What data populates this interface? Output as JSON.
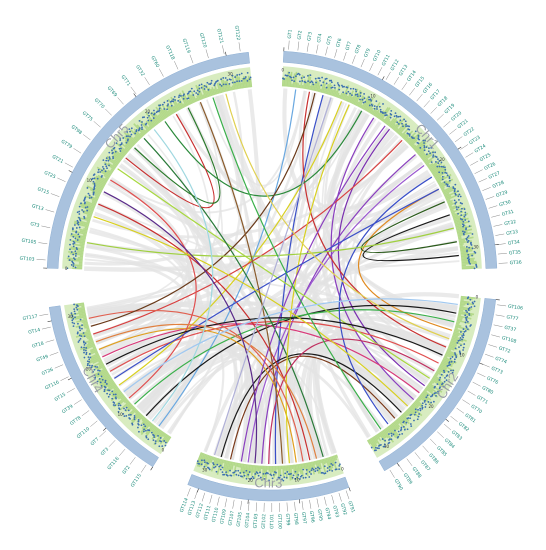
{
  "colors": {
    "ideogram": "#a9c2de",
    "ideogram_stroke": "#8fb0d4",
    "track_light": "#d8ecc0",
    "track_dark": "#b3d98a",
    "track_points": "#3a6fb0",
    "gene_label": "#1a8a7a",
    "gene_tick": "#555555",
    "background_link": "#e3e3e3",
    "chr_label": "#9a9ea6"
  },
  "chromosomes": [
    {
      "id": "chr1",
      "label": "Chr1",
      "genes": [
        "GT1",
        "GT2",
        "GT3",
        "GT4",
        "GT5",
        "GT6",
        "GT7",
        "GT8",
        "GT9",
        "GT10",
        "GT11",
        "GT12",
        "GT13",
        "GT14",
        "GT15",
        "GT16",
        "GT17",
        "GT18",
        "GT19",
        "GT20",
        "GT21",
        "GT22",
        "GT23",
        "GT24",
        "GT25",
        "GT26",
        "GT27",
        "GT28",
        "GT29",
        "GT30",
        "GT31",
        "GT32",
        "GT33",
        "GT34",
        "GT35",
        "GT36"
      ]
    },
    {
      "id": "chr2",
      "label": "Chr2",
      "genes": [
        "GT106",
        "GT77",
        "GT37",
        "GT108",
        "GT72",
        "GT74",
        "GT73",
        "GT76",
        "GT80",
        "GT71",
        "GT70",
        "GT81",
        "GT82",
        "GT83",
        "GT84",
        "GT85",
        "GT86",
        "GT87",
        "GT88",
        "GT89",
        "GT90"
      ]
    },
    {
      "id": "chr3",
      "label": "Chr3",
      "genes": [
        "GT91",
        "GT92",
        "GT93",
        "GT94",
        "GT95",
        "GT96",
        "GT97",
        "GT98",
        "GT99",
        "GT100",
        "GT101",
        "GT102",
        "GT103",
        "GT104",
        "GT105",
        "GT107",
        "GT109",
        "GT110",
        "GT111",
        "GT112",
        "GT113",
        "GT114"
      ]
    },
    {
      "id": "chr4",
      "label": "Chr4",
      "genes": [
        "GT115",
        "GT2",
        "GT116",
        "GT3",
        "GT7",
        "GT110",
        "GT78",
        "GT39",
        "GT15",
        "GT116",
        "GT26",
        "GT49",
        "GT18",
        "GT14",
        "GT117"
      ]
    },
    {
      "id": "chr5",
      "label": "Chr5",
      "genes": [
        "GT103",
        "GT105",
        "GT3",
        "GT13",
        "GT15",
        "GT25",
        "GT21",
        "GT79",
        "GT98",
        "GT75",
        "GT70",
        "GT69",
        "GT71",
        "GT32",
        "GT60",
        "GT118",
        "GT119",
        "GT120",
        "GT121",
        "GT122"
      ]
    }
  ],
  "ticks": [
    "0",
    "10",
    "20",
    "30"
  ],
  "links": [
    {
      "from": [
        "chr1",
        0.55
      ],
      "to": [
        "chr3",
        0.55
      ],
      "color": "#8a3fbf"
    },
    {
      "from": [
        "chr1",
        0.6
      ],
      "to": [
        "chr3",
        0.65
      ],
      "color": "#9b59d0"
    },
    {
      "from": [
        "chr1",
        0.35
      ],
      "to": [
        "chr2",
        0.65
      ],
      "color": "#8a3fbf"
    },
    {
      "from": [
        "chr1",
        0.42
      ],
      "to": [
        "chr2",
        0.55
      ],
      "color": "#7a2fb0"
    },
    {
      "from": [
        "chr1",
        0.15
      ],
      "to": [
        "chr3",
        0.45
      ],
      "color": "#3a4fc8"
    },
    {
      "from": [
        "chr1",
        0.22
      ],
      "to": [
        "chr4",
        0.45
      ],
      "color": "#d8d020"
    },
    {
      "from": [
        "chr1",
        0.1
      ],
      "to": [
        "chr2",
        0.3
      ],
      "color": "#c83030"
    },
    {
      "from": [
        "chr1",
        0.3
      ],
      "to": [
        "chr5",
        0.65
      ],
      "color": "#2a8a3a"
    },
    {
      "from": [
        "chr1",
        0.7
      ],
      "to": [
        "chr2",
        0.2
      ],
      "color": "#e08a20"
    },
    {
      "from": [
        "chr1",
        0.75
      ],
      "to": [
        "chr1",
        0.9
      ],
      "color": "#2a5a1a"
    },
    {
      "from": [
        "chr1",
        0.8
      ],
      "to": [
        "chr1",
        0.95
      ],
      "color": "#1a1a1a"
    },
    {
      "from": [
        "chr1",
        0.05
      ],
      "to": [
        "chr4",
        0.1
      ],
      "color": "#6aa8e0"
    },
    {
      "from": [
        "chr1",
        0.48
      ],
      "to": [
        "chr4",
        0.8
      ],
      "color": "#d84040"
    },
    {
      "from": [
        "chr2",
        0.1
      ],
      "to": [
        "chr4",
        0.2
      ],
      "color": "#1a1a1a"
    },
    {
      "from": [
        "chr2",
        0.15
      ],
      "to": [
        "chr4",
        0.3
      ],
      "color": "#3ab04a"
    },
    {
      "from": [
        "chr2",
        0.4
      ],
      "to": [
        "chr4",
        0.55
      ],
      "color": "#e05050"
    },
    {
      "from": [
        "chr2",
        0.5
      ],
      "to": [
        "chr5",
        0.4
      ],
      "color": "#a8d840"
    },
    {
      "from": [
        "chr2",
        0.75
      ],
      "to": [
        "chr3",
        0.85
      ],
      "color": "#1a1a1a"
    },
    {
      "from": [
        "chr2",
        0.8
      ],
      "to": [
        "chr3",
        0.78
      ],
      "color": "#7a3a1a"
    },
    {
      "from": [
        "chr2",
        0.6
      ],
      "to": [
        "chr4",
        0.65
      ],
      "color": "#d83a7a"
    },
    {
      "from": [
        "chr2",
        0.85
      ],
      "to": [
        "chr1",
        0.65
      ],
      "color": "#3a4fc8"
    },
    {
      "from": [
        "chr3",
        0.1
      ],
      "to": [
        "chr5",
        0.55
      ],
      "color": "#2a7a3a"
    },
    {
      "from": [
        "chr3",
        0.2
      ],
      "to": [
        "chr5",
        0.25
      ],
      "color": "#c83030"
    },
    {
      "from": [
        "chr3",
        0.3
      ],
      "to": [
        "chr4",
        0.7
      ],
      "color": "#e0a020"
    },
    {
      "from": [
        "chr3",
        0.35
      ],
      "to": [
        "chr1",
        0.25
      ],
      "color": "#d8d020"
    },
    {
      "from": [
        "chr3",
        0.25
      ],
      "to": [
        "chr4",
        0.9
      ],
      "color": "#e06050"
    },
    {
      "from": [
        "chr3",
        0.7
      ],
      "to": [
        "chr1",
        0.4
      ],
      "color": "#8a3fbf"
    },
    {
      "from": [
        "chr3",
        0.5
      ],
      "to": [
        "chr2",
        0.45
      ],
      "color": "#c03060"
    },
    {
      "from": [
        "chr4",
        0.35
      ],
      "to": [
        "chr5",
        0.35
      ],
      "color": "#e05050"
    },
    {
      "from": [
        "chr4",
        0.5
      ],
      "to": [
        "chr1",
        0.7
      ],
      "color": "#3a4fc8"
    },
    {
      "from": [
        "chr4",
        0.6
      ],
      "to": [
        "chr2",
        0.35
      ],
      "color": "#1a1a1a"
    },
    {
      "from": [
        "chr4",
        0.75
      ],
      "to": [
        "chr3",
        0.15
      ],
      "color": "#e08040"
    },
    {
      "from": [
        "chr4",
        0.85
      ],
      "to": [
        "chr1",
        0.12
      ],
      "color": "#6a3a1a"
    },
    {
      "from": [
        "chr5",
        0.1
      ],
      "to": [
        "chr1",
        0.85
      ],
      "color": "#a0d040"
    },
    {
      "from": [
        "chr5",
        0.2
      ],
      "to": [
        "chr2",
        0.7
      ],
      "color": "#d8d020"
    },
    {
      "from": [
        "chr5",
        0.45
      ],
      "to": [
        "chr5",
        0.7
      ],
      "color": "#c83030"
    },
    {
      "from": [
        "chr5",
        0.5
      ],
      "to": [
        "chr5",
        0.75
      ],
      "color": "#2a7a2a"
    },
    {
      "from": [
        "chr5",
        0.8
      ],
      "to": [
        "chr3",
        0.4
      ],
      "color": "#8a5a2a"
    },
    {
      "from": [
        "chr5",
        0.85
      ],
      "to": [
        "chr2",
        0.9
      ],
      "color": "#3ab04a"
    },
    {
      "from": [
        "chr5",
        0.6
      ],
      "to": [
        "chr4",
        0.15
      ],
      "color": "#a0d8e0"
    },
    {
      "from": [
        "chr5",
        0.3
      ],
      "to": [
        "chr3",
        0.6
      ],
      "color": "#5a2a8a"
    },
    {
      "from": [
        "chr2",
        0.25
      ],
      "to": [
        "chr5",
        0.9
      ],
      "color": "#e0d050"
    },
    {
      "from": [
        "chr4",
        0.4
      ],
      "to": [
        "chr2",
        0.05
      ],
      "color": "#a0c8f0"
    },
    {
      "from": [
        "chr1",
        0.18
      ],
      "to": [
        "chr3",
        0.9
      ],
      "color": "#b0b0d8"
    }
  ]
}
